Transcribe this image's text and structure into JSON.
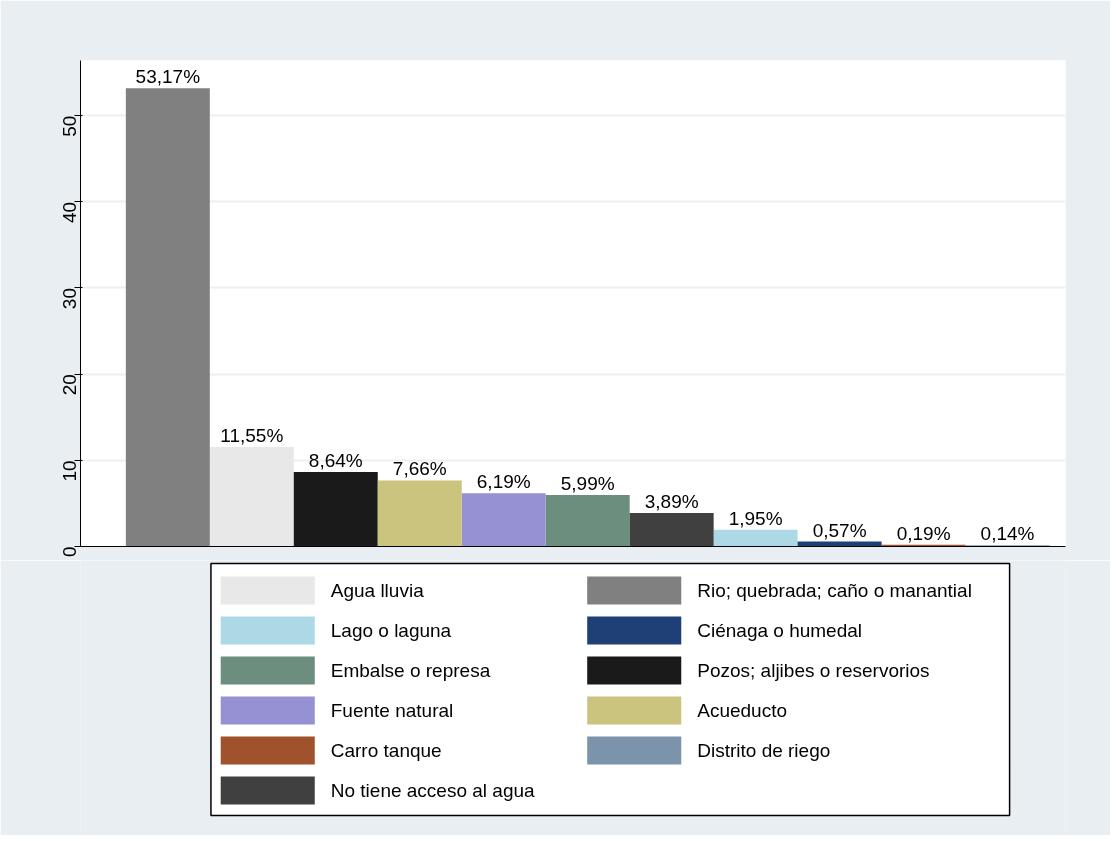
{
  "chart_data": {
    "type": "bar",
    "categories": [
      null,
      null,
      null,
      null,
      null,
      null,
      null,
      null,
      null,
      null,
      null
    ],
    "ylim": [
      0,
      56.4
    ],
    "yticks": [
      0,
      10,
      20,
      30,
      40,
      50
    ],
    "grid": "y",
    "legend": "bottom",
    "tick_labels": "y",
    "series": [
      {
        "name": "Agua lluvia",
        "color": "#e8e8e8",
        "values": [
          null,
          11.55,
          null,
          null,
          null,
          null,
          null,
          null,
          null,
          null,
          null
        ],
        "value_labels": [
          null,
          "11,55%",
          null,
          null,
          null,
          null,
          null,
          null,
          null,
          null,
          null
        ]
      },
      {
        "name": "Rio; quebrada; caño o manantial",
        "color": "#808080",
        "values": [
          53.17,
          null,
          null,
          null,
          null,
          null,
          null,
          null,
          null,
          null,
          null
        ],
        "value_labels": [
          "53,17%",
          null,
          null,
          null,
          null,
          null,
          null,
          null,
          null,
          null,
          null
        ]
      },
      {
        "name": "Lago o laguna",
        "color": "#add8e6",
        "values": [
          null,
          null,
          null,
          null,
          null,
          null,
          null,
          1.95,
          null,
          null,
          null
        ],
        "value_labels": [
          null,
          null,
          null,
          null,
          null,
          null,
          null,
          "1,95%",
          null,
          null,
          null
        ]
      },
      {
        "name": "Ciénaga o humedal",
        "color": "#1f3f77",
        "values": [
          null,
          null,
          null,
          null,
          null,
          null,
          null,
          null,
          0.57,
          null,
          null
        ],
        "value_labels": [
          null,
          null,
          null,
          null,
          null,
          null,
          null,
          null,
          "0,57%",
          null,
          null
        ]
      },
      {
        "name": "Embalse o represa",
        "color": "#6b8e7f",
        "values": [
          null,
          null,
          null,
          null,
          null,
          5.99,
          null,
          null,
          null,
          null,
          null
        ],
        "value_labels": [
          null,
          null,
          null,
          null,
          null,
          "5,99%",
          null,
          null,
          null,
          null,
          null
        ]
      },
      {
        "name": "Pozos; aljibes o reservorios",
        "color": "#1a1a1a",
        "values": [
          null,
          null,
          8.64,
          null,
          null,
          null,
          null,
          null,
          null,
          null,
          null
        ],
        "value_labels": [
          null,
          null,
          "8,64%",
          null,
          null,
          null,
          null,
          null,
          null,
          null,
          null
        ]
      },
      {
        "name": "Fuente natural",
        "color": "#9591d2",
        "values": [
          null,
          null,
          null,
          null,
          6.19,
          null,
          null,
          null,
          null,
          null,
          null
        ],
        "value_labels": [
          null,
          null,
          null,
          null,
          "6,19%",
          null,
          null,
          null,
          null,
          null,
          null
        ]
      },
      {
        "name": "Acueducto",
        "color": "#cbc47f",
        "values": [
          null,
          null,
          null,
          7.66,
          null,
          null,
          null,
          null,
          null,
          null,
          null
        ],
        "value_labels": [
          null,
          null,
          null,
          "7,66%",
          null,
          null,
          null,
          null,
          null,
          null,
          null
        ]
      },
      {
        "name": "Carro tanque",
        "color": "#a0522d",
        "values": [
          null,
          null,
          null,
          null,
          null,
          null,
          null,
          null,
          null,
          0.19,
          null
        ],
        "value_labels": [
          null,
          null,
          null,
          null,
          null,
          null,
          null,
          null,
          null,
          "0,19%",
          null
        ]
      },
      {
        "name": "Distrito de riego",
        "color": "#7b93ab",
        "values": [
          null,
          null,
          null,
          null,
          null,
          null,
          null,
          null,
          null,
          null,
          0.14
        ],
        "value_labels": [
          null,
          null,
          null,
          null,
          null,
          null,
          null,
          null,
          null,
          null,
          "0,14%"
        ]
      },
      {
        "name": "No tiene acceso al agua",
        "color": "#404040",
        "values": [
          null,
          null,
          null,
          null,
          null,
          null,
          3.89,
          null,
          null,
          null,
          null
        ],
        "value_labels": [
          null,
          null,
          null,
          null,
          null,
          null,
          "3,89%",
          null,
          null,
          null,
          null
        ]
      }
    ]
  }
}
